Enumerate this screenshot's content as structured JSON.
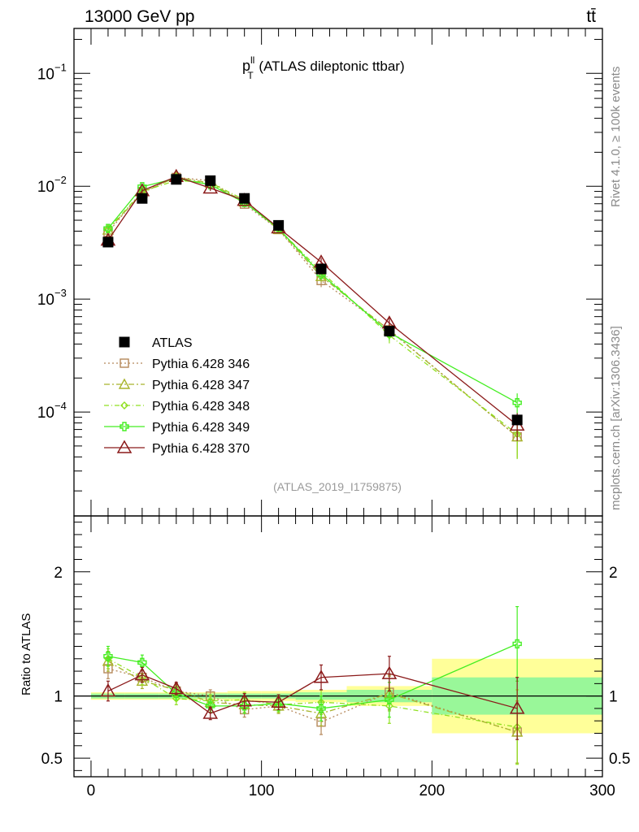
{
  "header": {
    "energy_label": "13000 GeV pp",
    "process_label": "tt̄"
  },
  "side_labels": {
    "rivet": "Rivet 4.1.0, ≥ 100k events",
    "mcplots": "mcplots.cern.ch [arXiv:1306.3436]"
  },
  "colors": {
    "atlas": "#000000",
    "p346": "#b5885a",
    "p347": "#a8b42c",
    "p348": "#90e020",
    "p349": "#44ee22",
    "p370": "#8b1a1a",
    "band_inner": "#99f799",
    "band_outer": "#ffff99"
  },
  "chart_data": {
    "type": "line",
    "title": "p_T^ll (ATLAS dileptonic ttbar)",
    "title_main": "p",
    "title_sup": "ll",
    "title_sub": "T",
    "title_rest": " (ATLAS dileptonic ttbar)",
    "analysis_id": "(ATLAS_2019_I1759875)",
    "xlabel": "",
    "ylabel_ratio": "Ratio to ATLAS",
    "xlim": [
      -10,
      300
    ],
    "ylim_main": [
      1.2e-05,
      0.25
    ],
    "ylim_ratio": [
      0.35,
      2.45
    ],
    "x_tick_labels": [
      "0",
      "100",
      "200",
      "300"
    ],
    "x_tick_values": [
      0,
      100,
      200,
      300
    ],
    "y_main_tick_labels": [
      "10",
      "10",
      "10",
      "10"
    ],
    "y_main_tick_exponents": [
      "−1",
      "−2",
      "−3",
      "−4"
    ],
    "y_main_tick_values": [
      0.1,
      0.01,
      0.001,
      0.0001
    ],
    "y_ratio_tick_labels": [
      "2",
      "1",
      "0.5"
    ],
    "y_ratio_tick_values": [
      2,
      1,
      0.5
    ],
    "x": [
      10,
      30,
      50,
      70,
      90,
      110,
      135,
      175,
      250
    ],
    "bins": [
      [
        0,
        20
      ],
      [
        20,
        40
      ],
      [
        40,
        60
      ],
      [
        60,
        80
      ],
      [
        80,
        100
      ],
      [
        100,
        120
      ],
      [
        120,
        150
      ],
      [
        150,
        200
      ],
      [
        200,
        300
      ]
    ],
    "atlas": {
      "name": "ATLAS",
      "values": [
        0.0032,
        0.0078,
        0.0115,
        0.0112,
        0.0078,
        0.0045,
        0.00185,
        0.00052,
        8.5e-05
      ],
      "band_inner": [
        0.02,
        0.02,
        0.02,
        0.02,
        0.02,
        0.02,
        0.03,
        0.05,
        0.15
      ],
      "band_outer": [
        0.03,
        0.03,
        0.03,
        0.03,
        0.04,
        0.04,
        0.05,
        0.08,
        0.3
      ]
    },
    "series": [
      {
        "name": "Pythia 6.428 346",
        "color_key": "p346",
        "marker": "square",
        "dash": "2,3",
        "ratio": [
          1.22,
          1.15,
          1.04,
          1.0,
          0.89,
          0.92,
          0.79,
          1.03,
          0.71
        ],
        "ratio_err": [
          0.08,
          0.06,
          0.05,
          0.05,
          0.06,
          0.06,
          0.1,
          0.14,
          0.25
        ]
      },
      {
        "name": "Pythia 6.428 347",
        "color_key": "p347",
        "marker": "triangle",
        "dash": "7,3,2,3",
        "ratio": [
          1.28,
          1.12,
          1.05,
          0.95,
          0.93,
          0.92,
          0.86,
          1.02,
          0.71
        ],
        "ratio_err": [
          0.08,
          0.06,
          0.05,
          0.05,
          0.06,
          0.06,
          0.1,
          0.14,
          0.25
        ]
      },
      {
        "name": "Pythia 6.428 348",
        "color_key": "p348",
        "marker": "diamond",
        "dash": "6,3,1,3",
        "ratio": [
          1.3,
          1.15,
          0.98,
          0.96,
          0.97,
          0.93,
          0.95,
          0.92,
          0.75
        ],
        "ratio_err": [
          0.08,
          0.06,
          0.05,
          0.05,
          0.06,
          0.06,
          0.1,
          0.14,
          0.3
        ]
      },
      {
        "name": "Pythia 6.428 349",
        "color_key": "p349",
        "marker": "cross",
        "dash": "",
        "ratio": [
          1.32,
          1.27,
          1.02,
          0.92,
          0.92,
          0.94,
          0.9,
          0.97,
          1.42
        ],
        "ratio_err": [
          0.08,
          0.06,
          0.05,
          0.05,
          0.06,
          0.06,
          0.1,
          0.14,
          0.3
        ]
      },
      {
        "name": "Pythia 6.428 370",
        "color_key": "p370",
        "marker": "opentriangle",
        "dash": "",
        "ratio": [
          1.04,
          1.17,
          1.06,
          0.86,
          0.96,
          0.95,
          1.15,
          1.18,
          0.9
        ],
        "ratio_err": [
          0.08,
          0.06,
          0.05,
          0.05,
          0.06,
          0.06,
          0.1,
          0.14,
          0.25
        ]
      }
    ]
  }
}
